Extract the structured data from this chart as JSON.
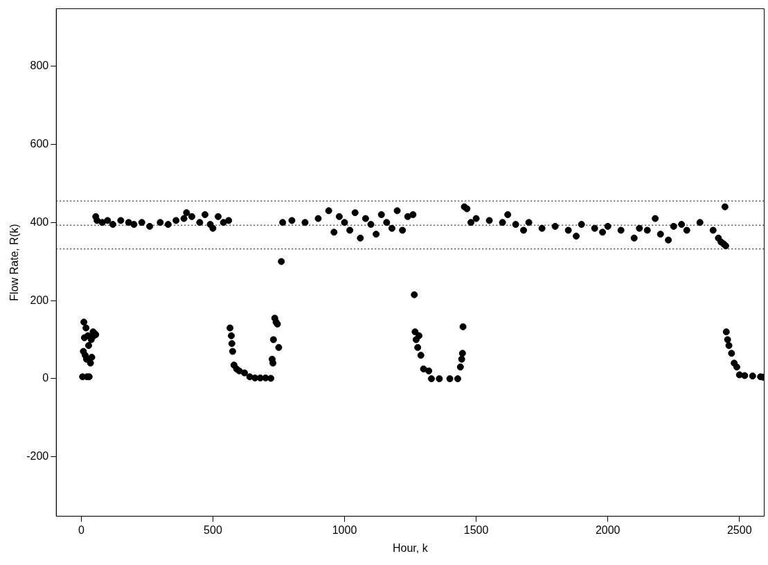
{
  "chart_data": {
    "type": "scatter",
    "xlabel": "Hour, k",
    "ylabel": "Flow Rate, R(k)",
    "xlim": [
      -95,
      2594
    ],
    "xticks": [
      0,
      500,
      1000,
      1500,
      2000,
      2500
    ],
    "ylim": [
      -352,
      947
    ],
    "yticks": [
      -200,
      0,
      200,
      400,
      600,
      800
    ],
    "grid": false,
    "legend": false,
    "marker": "circle",
    "ref_lines": [
      {
        "axis": "y",
        "value": 455,
        "color": "#000000",
        "line_style": "dotted"
      },
      {
        "axis": "y",
        "value": 393,
        "color": "#000000",
        "line_style": "dotted"
      },
      {
        "axis": "y",
        "value": 332,
        "color": "#000000",
        "line_style": "dotted"
      }
    ],
    "series": [
      {
        "color": "#000000",
        "x": [
          5,
          8,
          10,
          12,
          15,
          18,
          20,
          22,
          25,
          28,
          30,
          35,
          38,
          40,
          45,
          48,
          52,
          55,
          55,
          60,
          80,
          100,
          120,
          150,
          180,
          200,
          230,
          260,
          300,
          330,
          360,
          390,
          400,
          420,
          450,
          470,
          490,
          500,
          520,
          540,
          560,
          565,
          570,
          572,
          575,
          580,
          590,
          600,
          620,
          640,
          660,
          680,
          700,
          720,
          725,
          728,
          730,
          735,
          740,
          745,
          750,
          760,
          765,
          800,
          850,
          900,
          940,
          960,
          980,
          1000,
          1020,
          1040,
          1060,
          1080,
          1100,
          1120,
          1140,
          1160,
          1180,
          1200,
          1220,
          1240,
          1260,
          1265,
          1268,
          1272,
          1278,
          1283,
          1290,
          1300,
          1320,
          1330,
          1360,
          1400,
          1430,
          1440,
          1445,
          1448,
          1450,
          1455,
          1465,
          1480,
          1500,
          1550,
          1600,
          1620,
          1650,
          1680,
          1700,
          1750,
          1800,
          1850,
          1880,
          1900,
          1950,
          1980,
          2000,
          2050,
          2100,
          2120,
          2150,
          2180,
          2200,
          2230,
          2250,
          2280,
          2300,
          2350,
          2400,
          2420,
          2430,
          2440,
          2445,
          2448,
          2450,
          2455,
          2460,
          2470,
          2480,
          2490,
          2500,
          2520,
          2550,
          2580,
          2590
        ],
        "values": [
          5,
          70,
          145,
          105,
          60,
          130,
          50,
          5,
          110,
          85,
          5,
          40,
          100,
          55,
          120,
          110,
          115,
          113,
          415,
          405,
          400,
          405,
          395,
          405,
          400,
          395,
          400,
          390,
          400,
          395,
          405,
          410,
          425,
          415,
          400,
          420,
          395,
          385,
          415,
          400,
          405,
          130,
          110,
          90,
          70,
          35,
          25,
          20,
          15,
          5,
          2,
          2,
          2,
          1,
          50,
          40,
          100,
          155,
          145,
          140,
          80,
          300,
          400,
          405,
          400,
          410,
          430,
          375,
          415,
          400,
          380,
          425,
          360,
          410,
          395,
          370,
          420,
          400,
          385,
          430,
          380,
          415,
          420,
          215,
          120,
          100,
          80,
          110,
          60,
          25,
          20,
          0,
          0,
          0,
          0,
          30,
          50,
          65,
          133,
          440,
          435,
          400,
          410,
          405,
          400,
          420,
          395,
          380,
          400,
          385,
          390,
          380,
          365,
          395,
          385,
          375,
          390,
          380,
          360,
          385,
          380,
          410,
          370,
          355,
          390,
          395,
          380,
          400,
          380,
          360,
          350,
          345,
          440,
          340,
          120,
          100,
          85,
          65,
          40,
          30,
          10,
          8,
          7,
          5,
          4
        ]
      }
    ]
  }
}
